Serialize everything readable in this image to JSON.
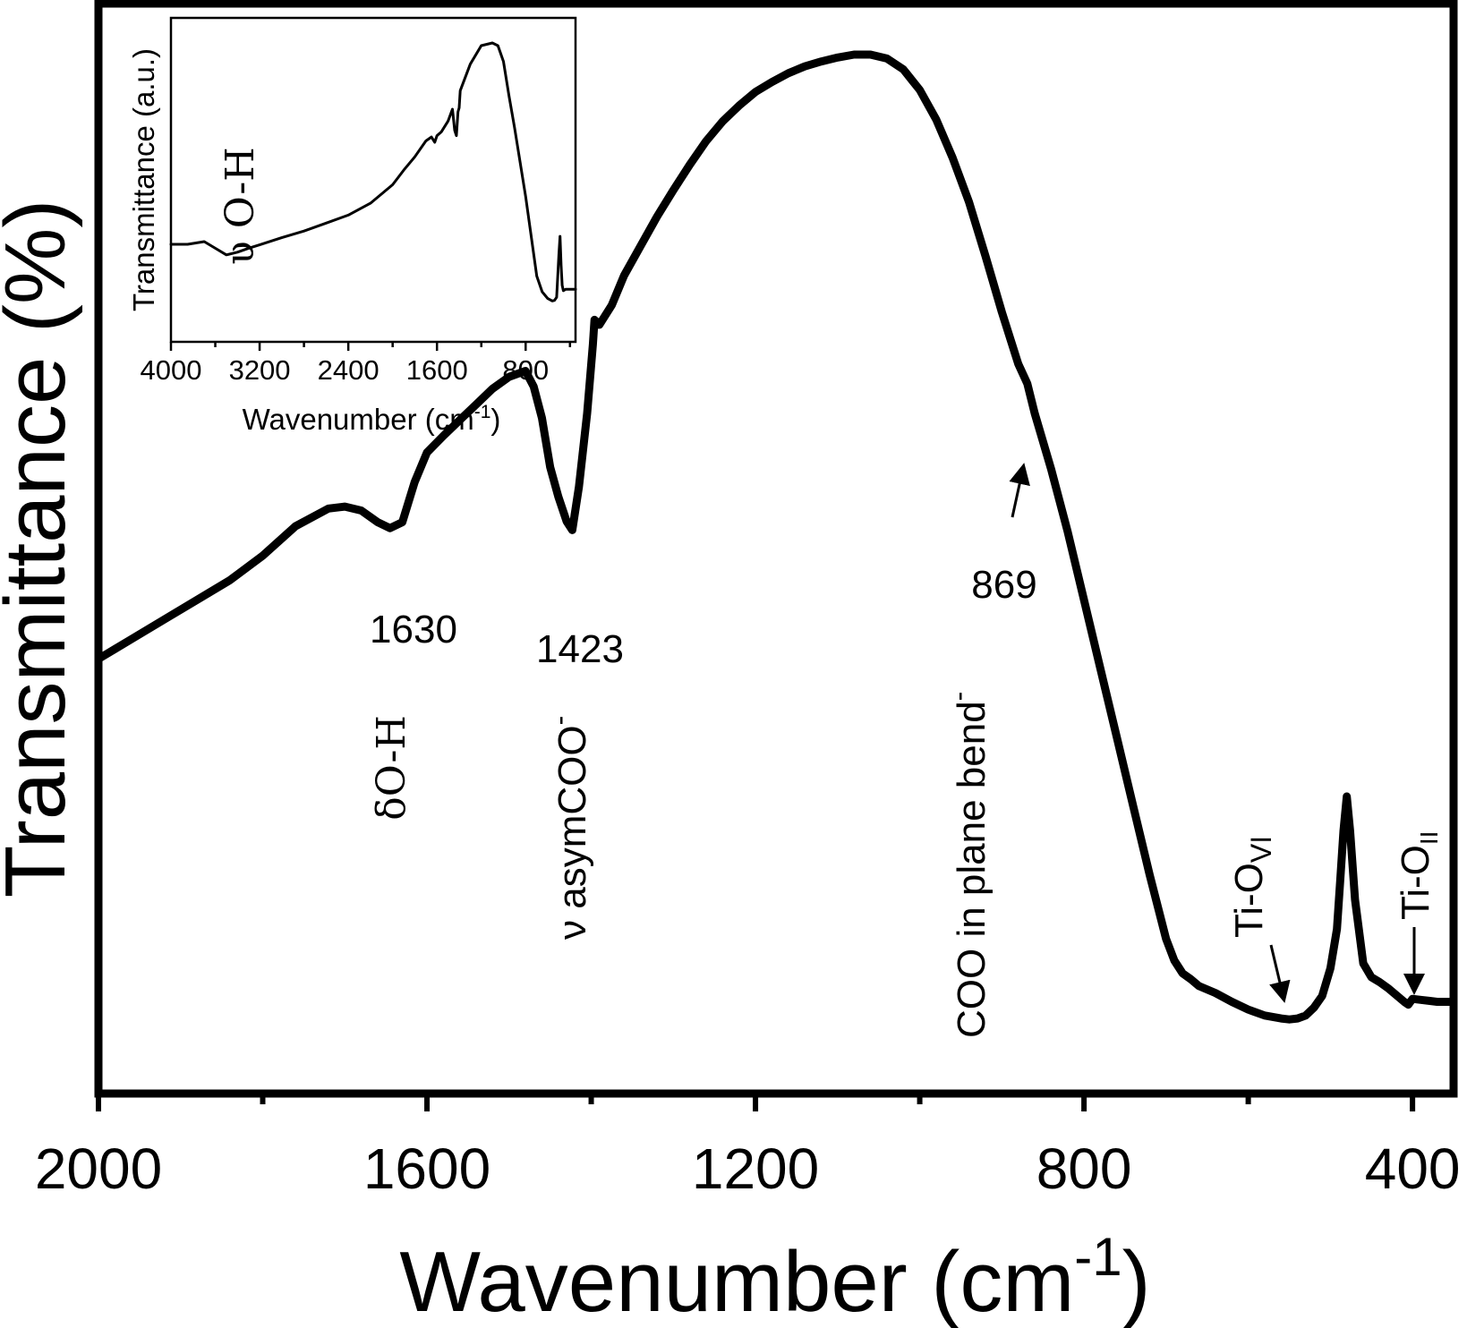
{
  "chart_data": [
    {
      "type": "line",
      "title": "",
      "xlabel": "Wavenumber (cm",
      "xlabel_sup": "-1",
      "xlabel_close": ")",
      "ylabel": "Transmittance (%)",
      "xlim": [
        2000,
        350
      ],
      "x_reversed": true,
      "x_ticks": [
        "2000",
        "1600",
        "1200",
        "800",
        "400"
      ],
      "x_tick_values": [
        2000,
        1600,
        1200,
        800,
        400
      ],
      "x_minor_tick_values": [
        1800,
        1400,
        1000,
        600
      ],
      "y_ticks_shown": false,
      "ylim": [
        0,
        100
      ],
      "grid": false,
      "legend": "none",
      "series": [
        {
          "x": [
            2000,
            1960,
            1920,
            1880,
            1840,
            1800,
            1760,
            1720,
            1700,
            1680,
            1660,
            1645,
            1630,
            1615,
            1600,
            1580,
            1560,
            1540,
            1520,
            1500,
            1480,
            1470,
            1460,
            1450,
            1440,
            1430,
            1423,
            1415,
            1405,
            1398,
            1396,
            1390,
            1375,
            1360,
            1340,
            1320,
            1300,
            1280,
            1260,
            1240,
            1220,
            1200,
            1180,
            1160,
            1140,
            1120,
            1100,
            1080,
            1060,
            1040,
            1020,
            1000,
            980,
            960,
            940,
            920,
            900,
            880,
            869,
            860,
            840,
            820,
            800,
            780,
            760,
            740,
            720,
            700,
            690,
            680,
            670,
            660,
            640,
            620,
            600,
            580,
            560,
            550,
            540,
            530,
            520,
            510,
            500,
            492,
            488,
            484,
            480,
            476,
            470,
            460,
            450,
            440,
            430,
            420,
            410,
            405,
            400,
            390,
            380,
            370,
            360,
            350
          ],
          "y": [
            37.5,
            39.5,
            41.5,
            43.5,
            45.5,
            48,
            51,
            52.8,
            53,
            52.6,
            51.4,
            50.8,
            51.4,
            55.5,
            58.5,
            60.2,
            61.8,
            63.4,
            65,
            66.2,
            66.8,
            65.2,
            62,
            57,
            54,
            51.5,
            50.6,
            55,
            62.5,
            69.5,
            72,
            71.5,
            73.5,
            76.5,
            79.5,
            82.5,
            85.2,
            87.8,
            90.2,
            92.2,
            93.8,
            95.2,
            96.2,
            97.1,
            97.8,
            98.3,
            98.7,
            99,
            99,
            98.6,
            97.5,
            95.4,
            92.4,
            88.5,
            84,
            78.5,
            72.8,
            67.5,
            65.5,
            62.5,
            56.8,
            50.5,
            43.5,
            36.5,
            29.5,
            22.5,
            15.5,
            9,
            6.8,
            5.5,
            4.9,
            4.2,
            3.5,
            2.6,
            1.8,
            1.2,
            0.9,
            0.8,
            0.9,
            1.2,
            2,
            3.2,
            6,
            10,
            15,
            20,
            23.5,
            20,
            13,
            6.5,
            5.1,
            4.6,
            4,
            3.3,
            2.6,
            2.3,
            2.9,
            2.8,
            2.7,
            2.6,
            2.6,
            2.6
          ]
        }
      ],
      "annotations": [
        {
          "text": "1630",
          "x_value": 1630
        },
        {
          "text": "1423",
          "x_value": 1423
        },
        {
          "text": "869",
          "x_value": 869
        },
        {
          "text": "δO-H",
          "x_value": 1630,
          "rotated": true
        },
        {
          "text": "ν asymCOO",
          "x_value": 1423,
          "rotated": true,
          "sup": "-"
        },
        {
          "text": "COO in plane bend",
          "x_value": 869,
          "rotated": true,
          "sup": "-"
        },
        {
          "text": "Ti-O",
          "x_value": 600,
          "rotated": true,
          "subscript": "VI",
          "arrow_target": 570
        },
        {
          "text": "Ti-O",
          "x_value": 405,
          "rotated": true,
          "subscript": "II",
          "arrow_target": 405
        }
      ]
    },
    {
      "type": "line",
      "inset": true,
      "title": "",
      "xlabel": "Wavenumber (cm",
      "xlabel_sup": "-1",
      "xlabel_close": ")",
      "ylabel": "Transmittance (a.u.)",
      "xlim": [
        4000,
        350
      ],
      "x_reversed": true,
      "x_ticks": [
        "4000",
        "3200",
        "2400",
        "1600",
        "800"
      ],
      "x_tick_values": [
        4000,
        3200,
        2400,
        1600,
        800
      ],
      "x_minor_tick_values": [
        3600,
        2800,
        2000,
        1200,
        400
      ],
      "y_ticks_shown": false,
      "ylim": [
        0,
        100
      ],
      "grid": false,
      "legend": "none",
      "series": [
        {
          "x": [
            4000,
            3850,
            3700,
            3600,
            3500,
            3400,
            3300,
            3200,
            3000,
            2800,
            2600,
            2400,
            2200,
            2000,
            1900,
            1800,
            1700,
            1650,
            1620,
            1600,
            1560,
            1500,
            1460,
            1440,
            1425,
            1410,
            1400,
            1390,
            1300,
            1200,
            1100,
            1050,
            1000,
            950,
            900,
            800,
            700,
            650,
            600,
            560,
            540,
            520,
            500,
            490,
            480,
            470,
            460,
            440,
            400,
            350
          ],
          "y": [
            24,
            24,
            25,
            22.5,
            20,
            21,
            22.5,
            23.8,
            26.5,
            29,
            32,
            35,
            39.5,
            46.5,
            52,
            57,
            63,
            64.5,
            62.5,
            65,
            66.5,
            70.5,
            75,
            67,
            65,
            74,
            75.5,
            82,
            92,
            99,
            100,
            99,
            93,
            80,
            68,
            42,
            12,
            6,
            3.5,
            2.6,
            2.8,
            4,
            20,
            27,
            16,
            8.5,
            6.5,
            7,
            7,
            7
          ]
        }
      ],
      "annotations": [
        {
          "text": "υ O-H",
          "x_value": 3400,
          "rotated": true
        }
      ]
    }
  ]
}
